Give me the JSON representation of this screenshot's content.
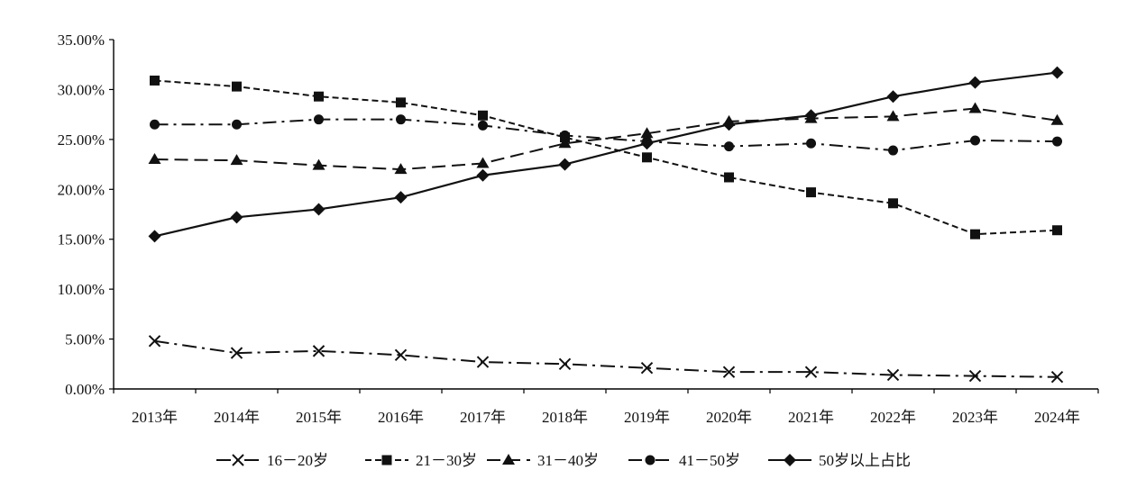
{
  "chart_data": {
    "type": "line",
    "title": "",
    "xlabel": "",
    "ylabel": "",
    "categories": [
      "2013年",
      "2014年",
      "2015年",
      "2016年",
      "2017年",
      "2018年",
      "2019年",
      "2020年",
      "2021年",
      "2022年",
      "2023年",
      "2024年"
    ],
    "ylim": [
      0,
      35
    ],
    "y_ticks": [
      "0.00%",
      "5.00%",
      "10.00%",
      "15.00%",
      "20.00%",
      "25.00%",
      "30.00%",
      "35.00%"
    ],
    "y_tick_values": [
      0,
      5,
      10,
      15,
      20,
      25,
      30,
      35
    ],
    "grid": false,
    "legend_position": "bottom",
    "series": [
      {
        "name": "16－20岁",
        "marker": "x",
        "dash": "dashdot",
        "values": [
          4.8,
          3.6,
          3.8,
          3.4,
          2.7,
          2.5,
          2.1,
          1.7,
          1.7,
          1.4,
          1.3,
          1.2
        ]
      },
      {
        "name": "21－30岁",
        "marker": "square",
        "dash": "shortdash",
        "values": [
          30.9,
          30.3,
          29.3,
          28.7,
          27.4,
          25.2,
          23.2,
          21.2,
          19.7,
          18.6,
          15.5,
          15.9
        ]
      },
      {
        "name": "31－40岁",
        "marker": "triangle",
        "dash": "longdash",
        "values": [
          23.0,
          22.9,
          22.4,
          22.0,
          22.6,
          24.6,
          25.6,
          26.8,
          27.1,
          27.3,
          28.1,
          26.9
        ]
      },
      {
        "name": "41－50岁",
        "marker": "circle",
        "dash": "longdashdot",
        "values": [
          26.5,
          26.5,
          27.0,
          27.0,
          26.4,
          25.4,
          24.8,
          24.3,
          24.6,
          23.9,
          24.9,
          24.8
        ]
      },
      {
        "name": "50岁以上占比",
        "marker": "diamond",
        "dash": "solid",
        "values": [
          15.3,
          17.2,
          18.0,
          19.2,
          21.4,
          22.5,
          24.6,
          26.5,
          27.4,
          29.3,
          30.7,
          31.7
        ]
      }
    ]
  }
}
